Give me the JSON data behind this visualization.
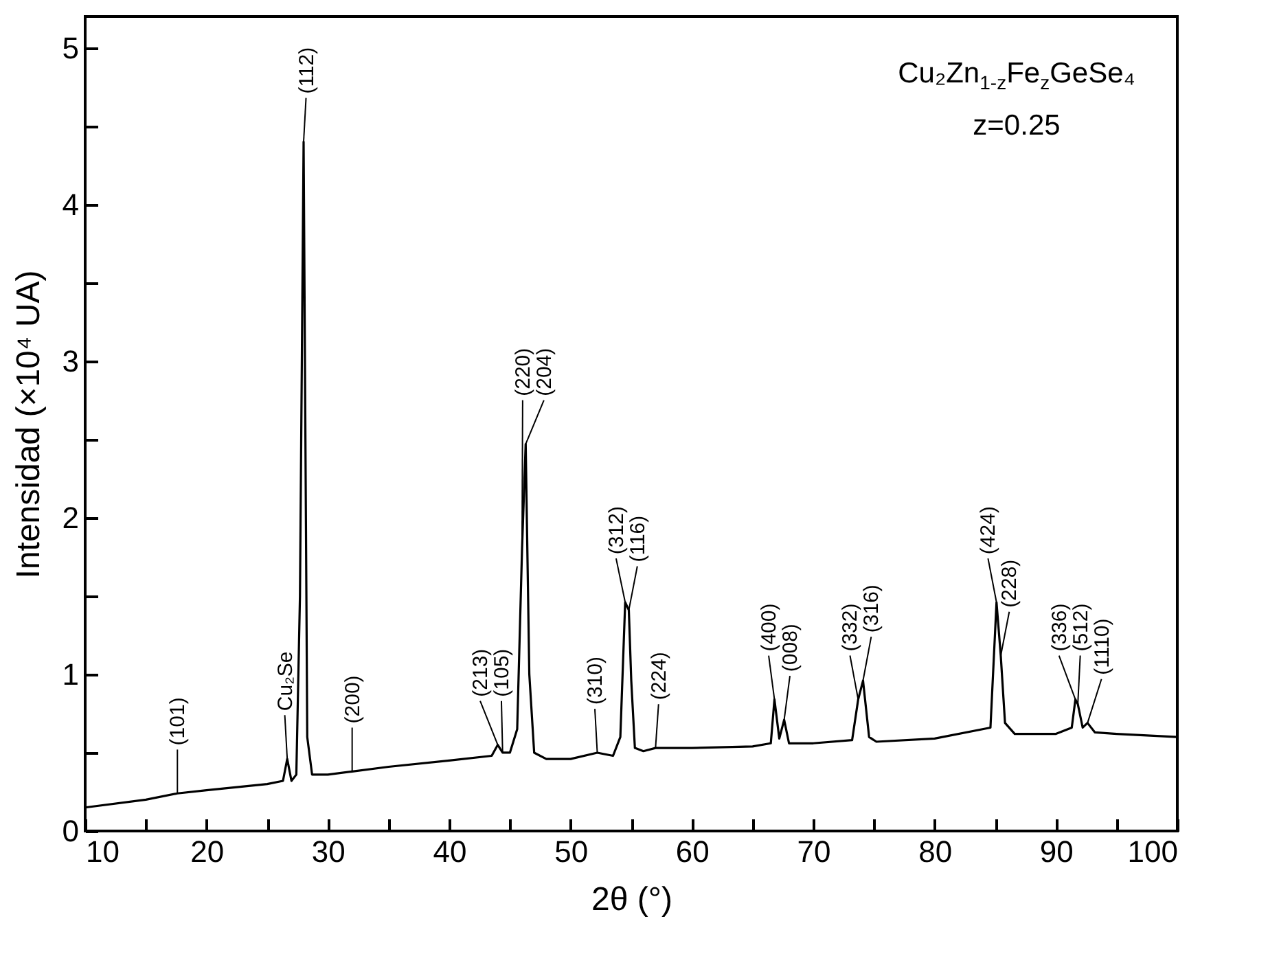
{
  "chart_data": {
    "type": "line",
    "xlabel": "2θ (°)",
    "ylabel": "Intensidad (×10⁴ UA)",
    "x": [
      10,
      15,
      17.6,
      20,
      25,
      26.3,
      26.65,
      27.0,
      27.4,
      27.7,
      28.0,
      28.3,
      28.7,
      30,
      32,
      35,
      40,
      43.5,
      44.0,
      44.4,
      45.0,
      45.6,
      46.0,
      46.3,
      46.6,
      47.0,
      48,
      50,
      52.2,
      53.5,
      54.1,
      54.5,
      54.8,
      55.0,
      55.3,
      56,
      57,
      60,
      65,
      66.5,
      66.8,
      67.2,
      67.6,
      68.0,
      70,
      73.2,
      73.7,
      74.1,
      74.6,
      75.2,
      80,
      84.6,
      85.1,
      85.45,
      85.8,
      86.6,
      90,
      91.3,
      91.6,
      91.8,
      92.2,
      92.6,
      93.2,
      95,
      100
    ],
    "series": [
      {
        "color": "#000000",
        "values": [
          0.15,
          0.2,
          0.24,
          0.26,
          0.3,
          0.32,
          0.46,
          0.32,
          0.36,
          1.5,
          4.4,
          0.6,
          0.36,
          0.36,
          0.38,
          0.41,
          0.45,
          0.48,
          0.55,
          0.5,
          0.5,
          0.65,
          1.8,
          2.47,
          1.0,
          0.5,
          0.46,
          0.46,
          0.5,
          0.48,
          0.6,
          1.46,
          1.41,
          0.96,
          0.53,
          0.51,
          0.53,
          0.53,
          0.54,
          0.56,
          0.84,
          0.59,
          0.71,
          0.56,
          0.56,
          0.58,
          0.84,
          0.96,
          0.6,
          0.57,
          0.59,
          0.66,
          1.46,
          1.12,
          0.69,
          0.62,
          0.62,
          0.66,
          0.84,
          0.81,
          0.66,
          0.69,
          0.63,
          0.62,
          0.6
        ]
      }
    ],
    "xlim": [
      10,
      100
    ],
    "xticks": [
      10,
      {
        "value": 15,
        "label": null
      },
      20,
      {
        "value": 25,
        "label": null
      },
      30,
      {
        "value": 35,
        "label": null
      },
      40,
      {
        "value": 45,
        "label": null
      },
      50,
      {
        "value": 55,
        "label": null
      },
      60,
      {
        "value": 65,
        "label": null
      },
      70,
      {
        "value": 75,
        "label": null
      },
      80,
      {
        "value": 85,
        "label": null
      },
      90,
      {
        "value": 95,
        "label": null
      },
      100
    ],
    "ylim": [
      0,
      5.2
    ],
    "yticks": [
      0,
      {
        "value": 0.5,
        "label": null
      },
      1,
      {
        "value": 1.5,
        "label": null
      },
      2,
      {
        "value": 2.5,
        "label": null
      },
      3,
      {
        "value": 3.5,
        "label": null
      },
      4,
      {
        "value": 4.5,
        "label": null
      },
      5
    ],
    "grid": false,
    "legend": false,
    "annotations": [
      "Cu₂Zn$_{1-z}$Fe$_{z}$GeSe₄",
      "z=0.25",
      {
        "text": "(101)",
        "x": 17.6,
        "y": 0.24
      },
      {
        "text": "Cu₂Se",
        "x": 26.65,
        "y": 0.46
      },
      {
        "text": "(112)",
        "x": 28.0,
        "y": 4.4
      },
      {
        "text": "(200)",
        "x": 32,
        "y": 0.38
      },
      {
        "text": "(213)",
        "x": 44.0,
        "y": 0.55
      },
      {
        "text": "(105)",
        "x": 44.4,
        "y": 0.5
      },
      {
        "text": "(220)",
        "x": 46.0,
        "y": 1.8
      },
      {
        "text": "(204)",
        "x": 46.3,
        "y": 2.47
      },
      {
        "text": "(310)",
        "x": 52.2,
        "y": 0.5
      },
      {
        "text": "(312)",
        "x": 54.5,
        "y": 1.46
      },
      {
        "text": "(116)",
        "x": 54.8,
        "y": 1.41
      },
      {
        "text": "(224)",
        "x": 57,
        "y": 0.53
      },
      {
        "text": "(400)",
        "x": 66.8,
        "y": 0.84
      },
      {
        "text": "(008)",
        "x": 67.6,
        "y": 0.71
      },
      {
        "text": "(332)",
        "x": 73.7,
        "y": 0.84
      },
      {
        "text": "(316)",
        "x": 74.1,
        "y": 0.96
      },
      {
        "text": "(424)",
        "x": 85.1,
        "y": 1.46
      },
      {
        "text": "(228)",
        "x": 85.45,
        "y": 1.12
      },
      {
        "text": "(336)",
        "x": 91.6,
        "y": 0.84
      },
      {
        "text": "(512)",
        "x": 91.8,
        "y": 0.81
      },
      {
        "text": "(1110)",
        "x": 92.6,
        "y": 0.69
      }
    ]
  }
}
